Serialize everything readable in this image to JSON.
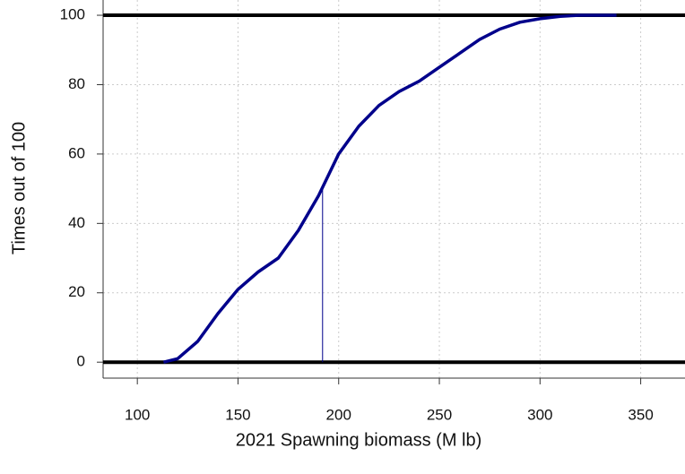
{
  "chart_data": {
    "type": "line",
    "x_label": "2021 Spawning biomass (M lb)",
    "y_label": "Times out of 100",
    "x": [
      113,
      120,
      130,
      140,
      150,
      160,
      170,
      180,
      190,
      200,
      210,
      220,
      230,
      240,
      250,
      260,
      270,
      280,
      290,
      300,
      310,
      320,
      338
    ],
    "series": [
      {
        "color": "#00008b",
        "values": [
          0,
          1,
          6,
          14,
          21,
          26,
          30,
          38,
          48,
          60,
          68,
          74,
          78,
          81,
          85,
          89,
          93,
          96,
          98,
          99,
          99.7,
          100,
          100
        ]
      }
    ],
    "reference_hlines": [
      0,
      100
    ],
    "reference_vline": {
      "x": 192,
      "y": 50
    },
    "xlim": [
      83,
      372
    ],
    "ylim": [
      -4.6,
      104.4
    ],
    "xticks": [
      100,
      150,
      200,
      250,
      300,
      350
    ],
    "yticks": [
      0,
      20,
      40,
      60,
      80,
      100
    ],
    "grid": true
  }
}
